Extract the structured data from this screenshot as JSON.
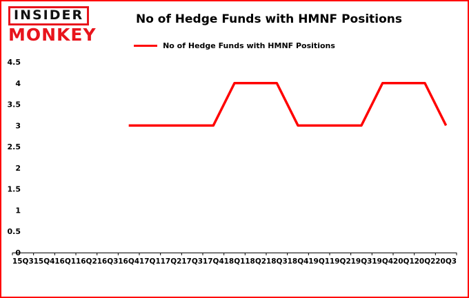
{
  "logo": {
    "line1": "INSIDER",
    "line2": "MONKEY"
  },
  "title": "No of Hedge Funds with HMNF Positions",
  "legend": {
    "label": "No of Hedge Funds with HMNF Positions",
    "color": "#ff0000"
  },
  "colors": {
    "frame_border": "#ff0000",
    "series_line": "#ff0000",
    "axis": "#000000",
    "background": "#ffffff"
  },
  "chart_data": {
    "type": "line",
    "title": "No of Hedge Funds with HMNF Positions",
    "categories": [
      "15Q3",
      "15Q4",
      "16Q1",
      "16Q2",
      "16Q3",
      "16Q4",
      "17Q1",
      "17Q2",
      "17Q3",
      "17Q4",
      "18Q1",
      "18Q2",
      "18Q3",
      "18Q4",
      "19Q1",
      "19Q2",
      "19Q3",
      "19Q4",
      "20Q1",
      "20Q2",
      "20Q3"
    ],
    "series": [
      {
        "name": "No of Hedge Funds with HMNF Positions",
        "color": "#ff0000",
        "values": [
          null,
          null,
          null,
          null,
          null,
          3,
          3,
          3,
          3,
          3,
          4,
          4,
          4,
          3,
          3,
          3,
          3,
          4,
          4,
          4,
          3
        ]
      }
    ],
    "xlabel": "",
    "ylabel": "",
    "ylim": [
      0,
      4.5
    ],
    "ytick_step": 0.5,
    "grid": false,
    "legend_position": "top"
  }
}
